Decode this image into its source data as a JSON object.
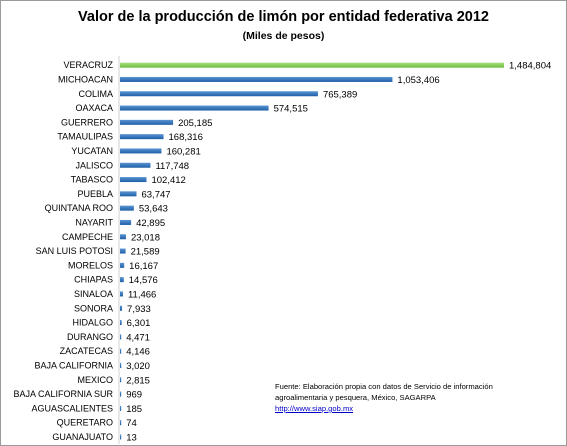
{
  "chart_data": {
    "type": "bar",
    "orientation": "horizontal",
    "title": "Valor de la producción de limón por entidad federativa 2012",
    "subtitle": "(Miles de pesos)",
    "xlabel": "",
    "ylabel": "",
    "grid": false,
    "categories": [
      "VERACRUZ",
      "MICHOACAN",
      "COLIMA",
      "OAXACA",
      "GUERRERO",
      "TAMAULIPAS",
      "YUCATAN",
      "JALISCO",
      "TABASCO",
      "PUEBLA",
      "QUINTANA ROO",
      "NAYARIT",
      "CAMPECHE",
      "SAN LUIS POTOSI",
      "MORELOS",
      "CHIAPAS",
      "SINALOA",
      "SONORA",
      "HIDALGO",
      "DURANGO",
      "ZACATECAS",
      "BAJA CALIFORNIA",
      "MEXICO",
      "BAJA CALIFORNIA SUR",
      "AGUASCALIENTES",
      "QUERETARO",
      "GUANAJUATO"
    ],
    "values": [
      1484804,
      1053406,
      765389,
      574515,
      205185,
      168316,
      160281,
      117748,
      102412,
      63747,
      53643,
      42895,
      23018,
      21589,
      16167,
      14576,
      11466,
      7933,
      6301,
      4471,
      4146,
      3020,
      2815,
      969,
      185,
      74,
      13
    ],
    "value_labels": [
      "1,484,804",
      "1,053,406",
      "765,389",
      "574,515",
      "205,185",
      "168,316",
      "160,281",
      "117,748",
      "102,412",
      "63,747",
      "53,643",
      "42,895",
      "23,018",
      "21,589",
      "16,167",
      "14,576",
      "11,466",
      "7,933",
      "6,301",
      "4,471",
      "4,146",
      "3,020",
      "2,815",
      "969",
      "185",
      "74",
      "13"
    ],
    "highlight_index": 0,
    "colors": {
      "bar": "#1f5fa6",
      "bar_light": "#5a95d4",
      "highlight": "#6bbf3a",
      "highlight_light": "#a8e07c"
    }
  },
  "source": {
    "line1": "Fuente:  Elaboración  propia  con datos de Servicio  de  información",
    "line2": "agroalimentaria  y pesquera,  México,  SAGARPA",
    "url": "http://www.siap.gob.mx"
  }
}
